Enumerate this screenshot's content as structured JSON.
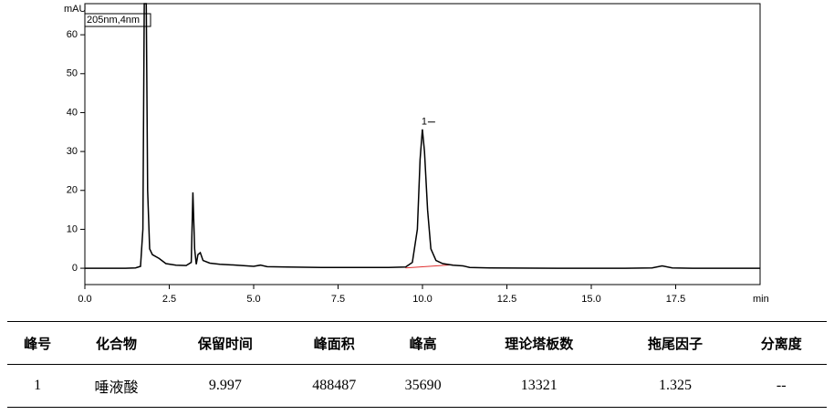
{
  "chart_data": {
    "type": "line",
    "y_label": "mAU",
    "x_label": "min",
    "legend": "205nm,4nm",
    "peak_label": "1",
    "xlim": [
      0,
      20
    ],
    "ylim": [
      -4.2,
      68
    ],
    "xticks": [
      {
        "value": 0,
        "label": "0.0"
      },
      {
        "value": 2.5,
        "label": "2.5"
      },
      {
        "value": 5,
        "label": "5.0"
      },
      {
        "value": 7.5,
        "label": "7.5"
      },
      {
        "value": 10,
        "label": "10.0"
      },
      {
        "value": 12.5,
        "label": "12.5"
      },
      {
        "value": 15,
        "label": "15.0"
      },
      {
        "value": 17.5,
        "label": "17.5"
      }
    ],
    "yticks": [
      0,
      10,
      20,
      30,
      40,
      50,
      60
    ],
    "series": [
      {
        "color": "#000000",
        "x": [
          0,
          1.2,
          1.5,
          1.65,
          1.72,
          1.76,
          1.82,
          1.86,
          1.92,
          2.0,
          2.2,
          2.4,
          2.7,
          3.0,
          3.15,
          3.2,
          3.25,
          3.3,
          3.35,
          3.42,
          3.5,
          3.7,
          4.0,
          4.5,
          5.0,
          5.2,
          5.4,
          6.0,
          7,
          8,
          9,
          9.5,
          9.7,
          9.85,
          9.93,
          9.997,
          10.06,
          10.15,
          10.25,
          10.4,
          10.6,
          10.9,
          11.2,
          11.4,
          12,
          14,
          16,
          16.8,
          17.1,
          17.4,
          18,
          20
        ],
        "values": [
          0,
          0,
          0.1,
          0.5,
          10,
          68,
          68,
          20,
          5,
          3.5,
          2.5,
          1.2,
          0.8,
          0.7,
          1.5,
          19.5,
          5,
          1.0,
          3.5,
          4,
          2,
          1.3,
          1.0,
          0.8,
          0.5,
          0.8,
          0.4,
          0.3,
          0.2,
          0.2,
          0.2,
          0.3,
          1.5,
          10,
          28,
          35.7,
          30,
          15,
          5,
          2,
          1.2,
          0.8,
          0.6,
          0.2,
          0.1,
          0,
          0,
          0.1,
          0.6,
          0.1,
          0,
          0
        ]
      }
    ],
    "baseline": {
      "color": "#e03030",
      "x": [
        9.5,
        10.9
      ],
      "values": [
        0.1,
        0.9
      ]
    }
  },
  "table": {
    "header": [
      "峰号",
      "化合物",
      "保留时间",
      "峰面积",
      "峰高",
      "理论塔板数",
      "拖尾因子",
      "分离度"
    ],
    "rows": [
      [
        "1",
        "唾液酸",
        "9.997",
        "488487",
        "35690",
        "13321",
        "1.325",
        "--"
      ]
    ]
  }
}
